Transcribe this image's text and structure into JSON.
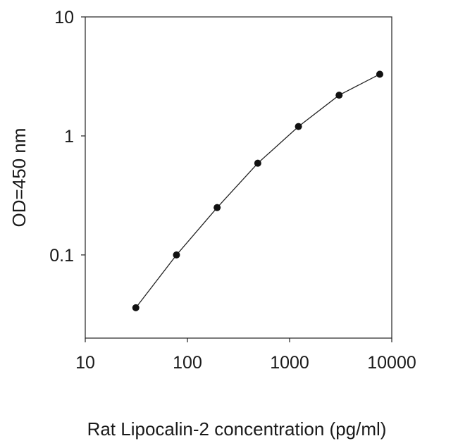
{
  "chart_data": {
    "type": "line",
    "title": "",
    "xlabel": "Rat Lipocalin-2 concentration (pg/ml)",
    "ylabel": "OD=450 nm",
    "x_scale": "log",
    "y_scale": "log",
    "xlim": [
      10,
      10000
    ],
    "ylim": [
      0.02,
      10
    ],
    "x_ticks": [
      10,
      100,
      1000,
      10000
    ],
    "x_tick_labels": [
      "10",
      "100",
      "1000",
      "10000"
    ],
    "y_ticks": [
      0.1,
      1,
      10
    ],
    "y_tick_labels": [
      "0.1",
      "1",
      "10"
    ],
    "grid": false,
    "legend": "none",
    "series": [
      {
        "x": [
          31.25,
          78.13,
          195.3,
          488.3,
          1221,
          3052,
          7630
        ],
        "y": [
          0.036,
          0.1,
          0.25,
          0.59,
          1.2,
          2.2,
          3.3
        ]
      }
    ],
    "colors": {
      "line": "#222222",
      "marker": "#111111",
      "axis": "#222222"
    }
  }
}
